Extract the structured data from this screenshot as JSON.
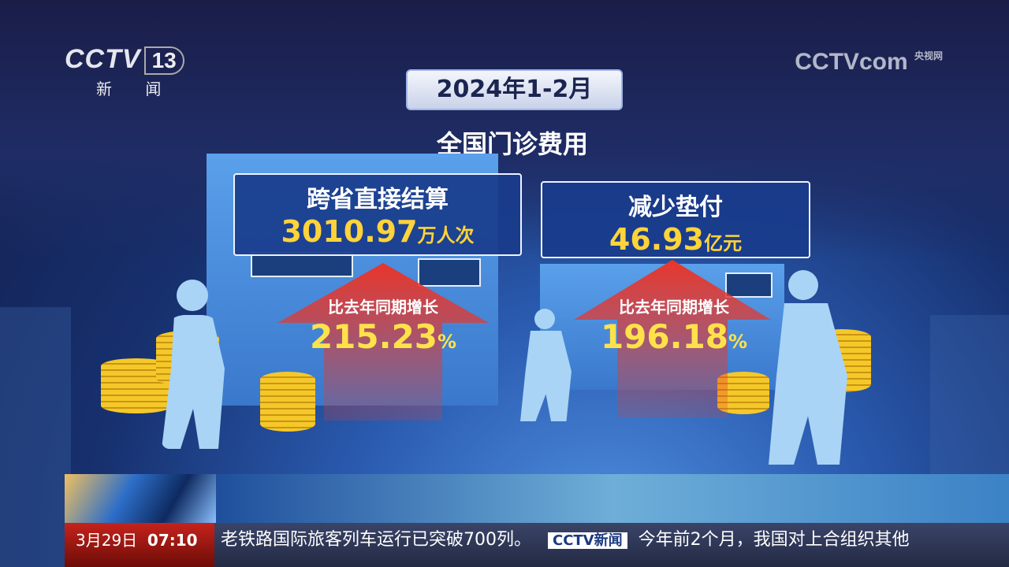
{
  "channel_logo": {
    "brand": "CCTV",
    "number": "13",
    "subtitle": "新 闻"
  },
  "watermark": {
    "brand": "CCTV",
    "suffix": "com",
    "label": "央视网"
  },
  "header": {
    "date_badge": "2024年1-2月",
    "title": "全国门诊费用"
  },
  "cards": [
    {
      "label": "跨省直接结算",
      "value": "3010.97",
      "unit": "万人次",
      "growth_label": "比去年同期增长",
      "growth_value": "215.23",
      "growth_unit": "%"
    },
    {
      "label": "减少垫付",
      "value": "46.93",
      "unit": "亿元",
      "growth_label": "比去年同期增长",
      "growth_value": "196.18",
      "growth_unit": "%"
    }
  ],
  "ticker": {
    "date": "3月29日",
    "time": "07:10",
    "text1": "老铁路国际旅客列车运行已突破700列。",
    "logo": "CCTV新闻",
    "text2": "今年前2个月，我国对上合组织其他"
  },
  "colors": {
    "accent_yellow": "#ffd33a",
    "arrow_red": "#e8352a",
    "ticker_red": "#c5231b"
  }
}
